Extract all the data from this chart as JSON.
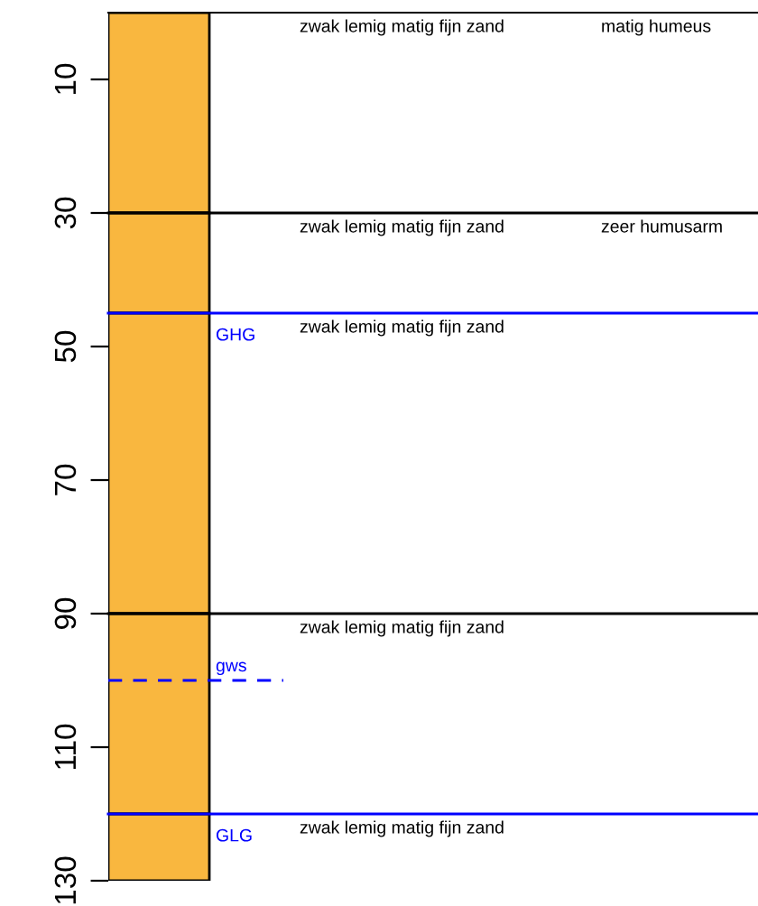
{
  "chart_data": {
    "type": "bar",
    "stacked": true,
    "categories": [
      null
    ],
    "series": [
      {
        "name": "zwak lemig matig fijn zand",
        "color": "#f9b73f",
        "values": [
          30
        ]
      },
      {
        "name": "zwak lemig matig fijn zand",
        "color": "#f9b73f",
        "values": [
          15
        ]
      },
      {
        "name": "zwak lemig matig fijn zand",
        "color": "#f9b73f",
        "values": [
          45
        ]
      },
      {
        "name": "zwak lemig matig fijn zand",
        "color": "#f9b73f",
        "values": [
          30
        ]
      },
      {
        "name": "zwak lemig matig fijn zand",
        "color": "#f9b73f",
        "values": [
          10
        ]
      }
    ],
    "ylim": [
      130,
      0
    ],
    "yticks": [
      10,
      30,
      50,
      70,
      90,
      110,
      130
    ],
    "tick_labels": "y",
    "grid": false,
    "ref_lines": [
      {
        "axis": "y",
        "value": 30,
        "color": "#000000"
      },
      {
        "axis": "y",
        "value": 45,
        "label": "GHG",
        "color": "#0000ff",
        "line_style": "solid"
      },
      {
        "axis": "y",
        "value": 90,
        "color": "#000000"
      },
      {
        "axis": "y",
        "value": 100,
        "label": "gws",
        "color": "#0000ff",
        "line_style": "dashed"
      },
      {
        "axis": "y",
        "value": 120,
        "label": "GLG",
        "color": "#0000ff",
        "line_style": "solid"
      }
    ],
    "annotations": [
      "matig humeus",
      "zeer humusarm"
    ]
  }
}
